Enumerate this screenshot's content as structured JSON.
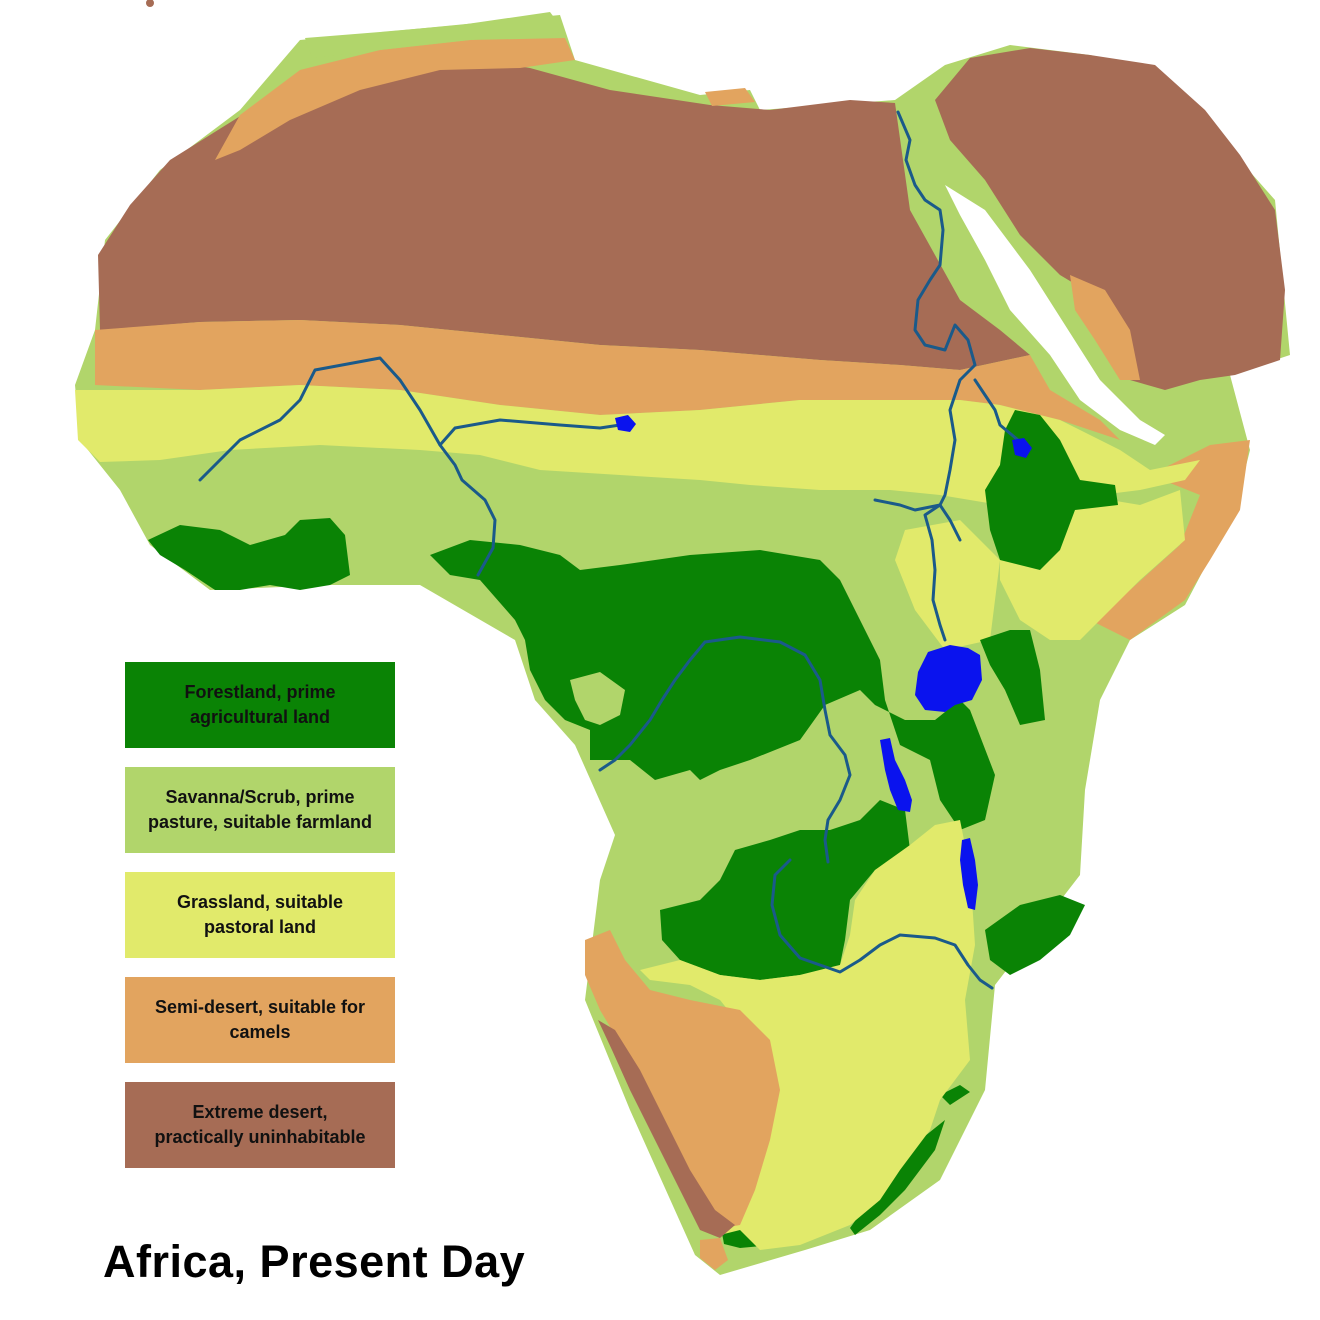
{
  "map": {
    "title": "Africa, Present Day",
    "colors": {
      "forest": "#0a8305",
      "savanna": "#b1d56b",
      "grassland": "#e1ea6b",
      "semi_desert": "#e2a45f",
      "extreme_desert": "#a66c55",
      "water": "#0a13ee",
      "river": "#1a5a8a"
    },
    "legend": [
      {
        "id": "forest",
        "label": "Forestland, prime\nagricultural land",
        "color": "#0a8305"
      },
      {
        "id": "savanna",
        "label": "Savanna/Scrub, prime\npasture, suitable farmland",
        "color": "#b1d56b"
      },
      {
        "id": "grassland",
        "label": "Grassland, suitable\npastoral land",
        "color": "#e1ea6b"
      },
      {
        "id": "semi_desert",
        "label": "Semi-desert, suitable for\ncamels",
        "color": "#e2a45f"
      },
      {
        "id": "extreme_desert",
        "label": "Extreme desert,\npractically uninhabitable",
        "color": "#a66c55"
      }
    ]
  }
}
